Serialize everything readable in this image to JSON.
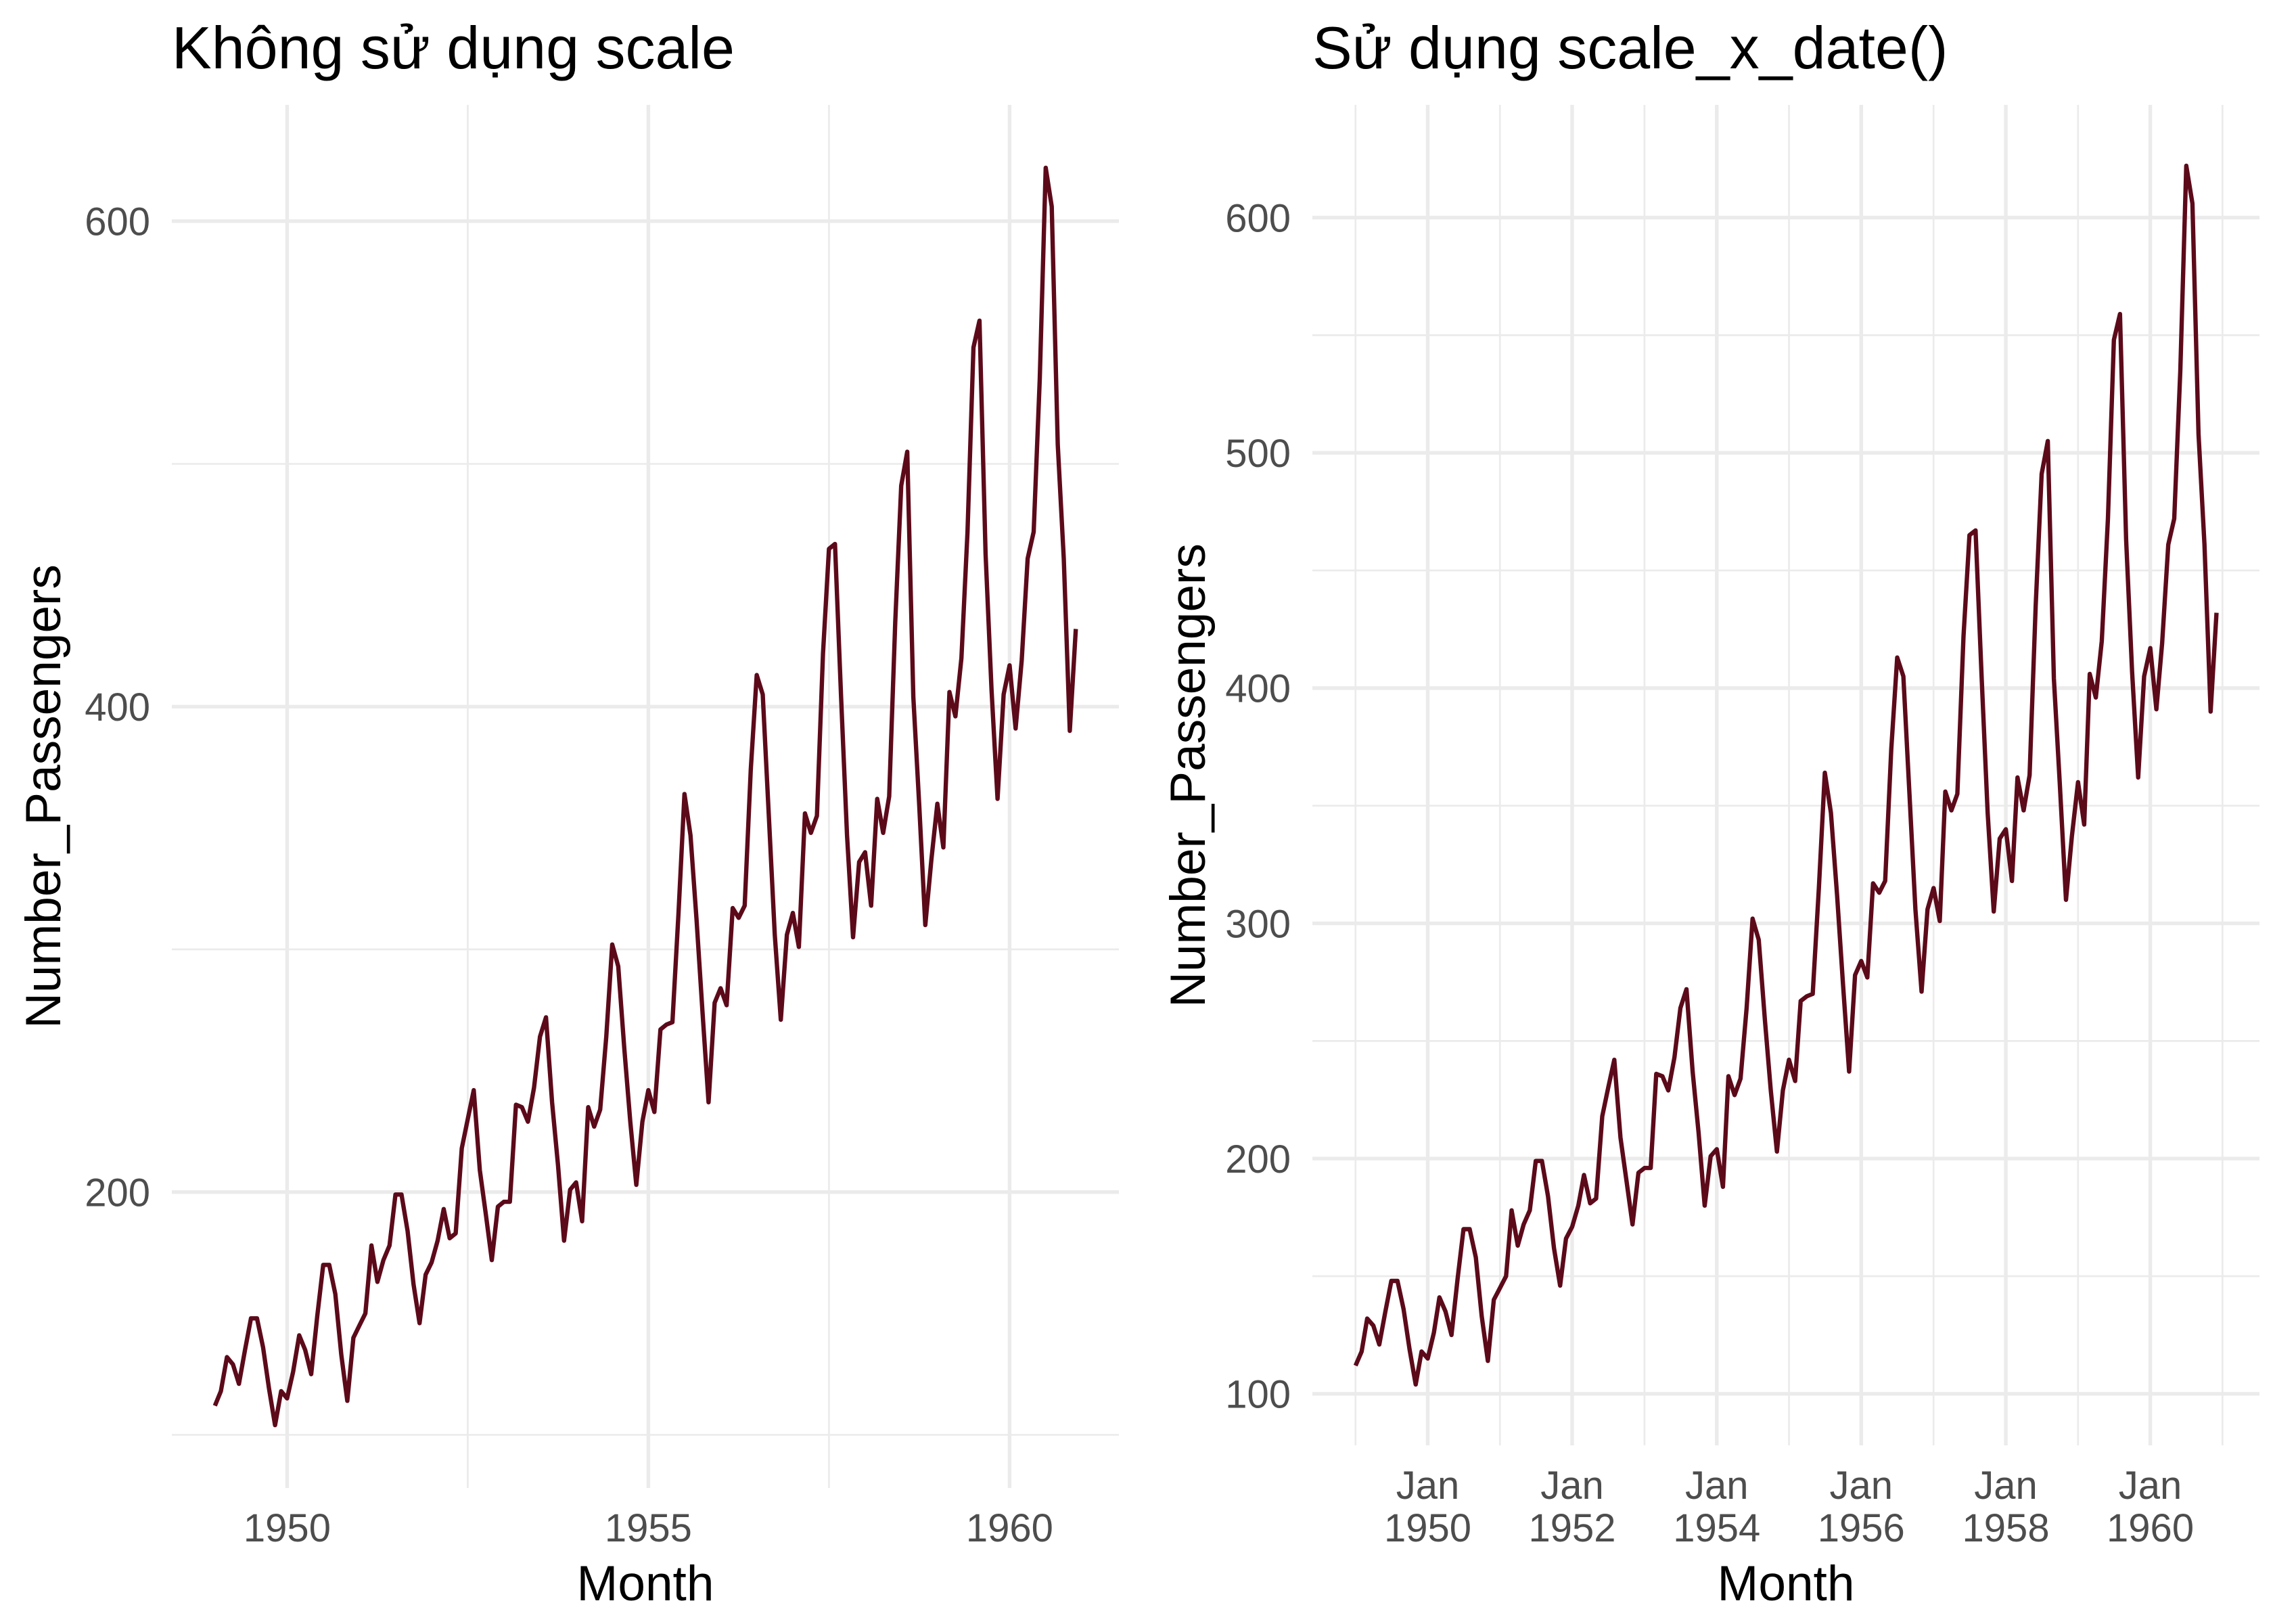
{
  "colors": {
    "background": "#FFFFFF",
    "line": "#5C0A1A",
    "grid": "#EBEBEB",
    "axis_text": "#4D4D4D",
    "text": "#000000"
  },
  "chart_data": [
    {
      "type": "line",
      "title": "Không sử dụng scale",
      "xlabel": "Month",
      "ylabel": "Number_Passengers",
      "x_axis_type": "continuous",
      "xlim": [
        1948.404,
        1961.513
      ],
      "ylim": [
        78.1,
        647.9
      ],
      "x_ticks": [
        1950,
        1955,
        1960
      ],
      "y_ticks": [
        200,
        400,
        600
      ],
      "grid": true,
      "series": [
        {
          "x": [
            1949,
            1949.083,
            1949.167,
            1949.25,
            1949.333,
            1949.417,
            1949.5,
            1949.583,
            1949.667,
            1949.75,
            1949.833,
            1949.917,
            1950,
            1950.083,
            1950.167,
            1950.25,
            1950.333,
            1950.417,
            1950.5,
            1950.583,
            1950.667,
            1950.75,
            1950.833,
            1950.917,
            1951,
            1951.083,
            1951.167,
            1951.25,
            1951.333,
            1951.417,
            1951.5,
            1951.583,
            1951.667,
            1951.75,
            1951.833,
            1951.917,
            1952,
            1952.083,
            1952.167,
            1952.25,
            1952.333,
            1952.417,
            1952.5,
            1952.583,
            1952.667,
            1952.75,
            1952.833,
            1952.917,
            1953,
            1953.083,
            1953.167,
            1953.25,
            1953.333,
            1953.417,
            1953.5,
            1953.583,
            1953.667,
            1953.75,
            1953.833,
            1953.917,
            1954,
            1954.083,
            1954.167,
            1954.25,
            1954.333,
            1954.417,
            1954.5,
            1954.583,
            1954.667,
            1954.75,
            1954.833,
            1954.917,
            1955,
            1955.083,
            1955.167,
            1955.25,
            1955.333,
            1955.417,
            1955.5,
            1955.583,
            1955.667,
            1955.75,
            1955.833,
            1955.917,
            1956,
            1956.083,
            1956.167,
            1956.25,
            1956.333,
            1956.417,
            1956.5,
            1956.583,
            1956.667,
            1956.75,
            1956.833,
            1956.917,
            1957,
            1957.083,
            1957.167,
            1957.25,
            1957.333,
            1957.417,
            1957.5,
            1957.583,
            1957.667,
            1957.75,
            1957.833,
            1957.917,
            1958,
            1958.083,
            1958.167,
            1958.25,
            1958.333,
            1958.417,
            1958.5,
            1958.583,
            1958.667,
            1958.75,
            1958.833,
            1958.917,
            1959,
            1959.083,
            1959.167,
            1959.25,
            1959.333,
            1959.417,
            1959.5,
            1959.583,
            1959.667,
            1959.75,
            1959.833,
            1959.917,
            1960,
            1960.083,
            1960.167,
            1960.25,
            1960.333,
            1960.417,
            1960.5,
            1960.583,
            1960.667,
            1960.75,
            1960.833,
            1960.917
          ],
          "y": [
            112,
            118,
            132,
            129,
            121,
            135,
            148,
            148,
            136,
            119,
            104,
            118,
            115,
            126,
            141,
            135,
            125,
            149,
            170,
            170,
            158,
            133,
            114,
            140,
            145,
            150,
            178,
            163,
            172,
            178,
            199,
            199,
            184,
            162,
            146,
            166,
            171,
            180,
            193,
            181,
            183,
            218,
            230,
            242,
            209,
            191,
            172,
            194,
            196,
            196,
            236,
            235,
            229,
            243,
            264,
            272,
            237,
            211,
            180,
            201,
            204,
            188,
            235,
            227,
            234,
            264,
            302,
            293,
            259,
            229,
            203,
            229,
            242,
            233,
            267,
            269,
            270,
            315,
            364,
            347,
            312,
            274,
            237,
            278,
            284,
            277,
            317,
            313,
            318,
            374,
            413,
            405,
            355,
            306,
            271,
            306,
            315,
            301,
            356,
            348,
            355,
            422,
            465,
            467,
            404,
            347,
            305,
            336,
            340,
            318,
            362,
            348,
            363,
            435,
            491,
            505,
            404,
            359,
            310,
            337,
            360,
            342,
            406,
            396,
            420,
            472,
            548,
            559,
            463,
            407,
            362,
            405,
            417,
            391,
            419,
            461,
            472,
            535,
            622,
            606,
            508,
            461,
            390,
            432
          ]
        }
      ]
    },
    {
      "type": "line",
      "title": "Sử dụng scale_x_date()",
      "xlabel": "Month",
      "ylabel": "Number_Passengers",
      "x_axis_type": "date",
      "xlim": [
        "1948-05-28",
        "1961-07-06"
      ],
      "ylim": [
        78.1,
        647.9
      ],
      "x_ticks": [
        {
          "month": "Jan",
          "year": "1950"
        },
        {
          "month": "Jan",
          "year": "1952"
        },
        {
          "month": "Jan",
          "year": "1954"
        },
        {
          "month": "Jan",
          "year": "1956"
        },
        {
          "month": "Jan",
          "year": "1958"
        },
        {
          "month": "Jan",
          "year": "1960"
        }
      ],
      "y_ticks": [
        100,
        200,
        300,
        400,
        500,
        600
      ],
      "grid": true,
      "series": [
        {
          "x": [
            "1949-01-01",
            "1949-02-01",
            "1949-03-01",
            "1949-04-01",
            "1949-05-01",
            "1949-06-01",
            "1949-07-01",
            "1949-08-01",
            "1949-09-01",
            "1949-10-01",
            "1949-11-01",
            "1949-12-01",
            "1950-01-01",
            "1950-02-01",
            "1950-03-01",
            "1950-04-01",
            "1950-05-01",
            "1950-06-01",
            "1950-07-01",
            "1950-08-01",
            "1950-09-01",
            "1950-10-01",
            "1950-11-01",
            "1950-12-01",
            "1951-01-01",
            "1951-02-01",
            "1951-03-01",
            "1951-04-01",
            "1951-05-01",
            "1951-06-01",
            "1951-07-01",
            "1951-08-01",
            "1951-09-01",
            "1951-10-01",
            "1951-11-01",
            "1951-12-01",
            "1952-01-01",
            "1952-02-01",
            "1952-03-01",
            "1952-04-01",
            "1952-05-01",
            "1952-06-01",
            "1952-07-01",
            "1952-08-01",
            "1952-09-01",
            "1952-10-01",
            "1952-11-01",
            "1952-12-01",
            "1953-01-01",
            "1953-02-01",
            "1953-03-01",
            "1953-04-01",
            "1953-05-01",
            "1953-06-01",
            "1953-07-01",
            "1953-08-01",
            "1953-09-01",
            "1953-10-01",
            "1953-11-01",
            "1953-12-01",
            "1954-01-01",
            "1954-02-01",
            "1954-03-01",
            "1954-04-01",
            "1954-05-01",
            "1954-06-01",
            "1954-07-01",
            "1954-08-01",
            "1954-09-01",
            "1954-10-01",
            "1954-11-01",
            "1954-12-01",
            "1955-01-01",
            "1955-02-01",
            "1955-03-01",
            "1955-04-01",
            "1955-05-01",
            "1955-06-01",
            "1955-07-01",
            "1955-08-01",
            "1955-09-01",
            "1955-10-01",
            "1955-11-01",
            "1955-12-01",
            "1956-01-01",
            "1956-02-01",
            "1956-03-01",
            "1956-04-01",
            "1956-05-01",
            "1956-06-01",
            "1956-07-01",
            "1956-08-01",
            "1956-09-01",
            "1956-10-01",
            "1956-11-01",
            "1956-12-01",
            "1957-01-01",
            "1957-02-01",
            "1957-03-01",
            "1957-04-01",
            "1957-05-01",
            "1957-06-01",
            "1957-07-01",
            "1957-08-01",
            "1957-09-01",
            "1957-10-01",
            "1957-11-01",
            "1957-12-01",
            "1958-01-01",
            "1958-02-01",
            "1958-03-01",
            "1958-04-01",
            "1958-05-01",
            "1958-06-01",
            "1958-07-01",
            "1958-08-01",
            "1958-09-01",
            "1958-10-01",
            "1958-11-01",
            "1958-12-01",
            "1959-01-01",
            "1959-02-01",
            "1959-03-01",
            "1959-04-01",
            "1959-05-01",
            "1959-06-01",
            "1959-07-01",
            "1959-08-01",
            "1959-09-01",
            "1959-10-01",
            "1959-11-01",
            "1959-12-01",
            "1960-01-01",
            "1960-02-01",
            "1960-03-01",
            "1960-04-01",
            "1960-05-01",
            "1960-06-01",
            "1960-07-01",
            "1960-08-01",
            "1960-09-01",
            "1960-10-01",
            "1960-11-01",
            "1960-12-01"
          ],
          "y": [
            112,
            118,
            132,
            129,
            121,
            135,
            148,
            148,
            136,
            119,
            104,
            118,
            115,
            126,
            141,
            135,
            125,
            149,
            170,
            170,
            158,
            133,
            114,
            140,
            145,
            150,
            178,
            163,
            172,
            178,
            199,
            199,
            184,
            162,
            146,
            166,
            171,
            180,
            193,
            181,
            183,
            218,
            230,
            242,
            209,
            191,
            172,
            194,
            196,
            196,
            236,
            235,
            229,
            243,
            264,
            272,
            237,
            211,
            180,
            201,
            204,
            188,
            235,
            227,
            234,
            264,
            302,
            293,
            259,
            229,
            203,
            229,
            242,
            233,
            267,
            269,
            270,
            315,
            364,
            347,
            312,
            274,
            237,
            278,
            284,
            277,
            317,
            313,
            318,
            374,
            413,
            405,
            355,
            306,
            271,
            306,
            315,
            301,
            356,
            348,
            355,
            422,
            465,
            467,
            404,
            347,
            305,
            336,
            340,
            318,
            362,
            348,
            363,
            435,
            491,
            505,
            404,
            359,
            310,
            337,
            360,
            342,
            406,
            396,
            420,
            472,
            548,
            559,
            463,
            407,
            362,
            405,
            417,
            391,
            419,
            461,
            472,
            535,
            622,
            606,
            508,
            461,
            390,
            432
          ]
        }
      ]
    }
  ]
}
